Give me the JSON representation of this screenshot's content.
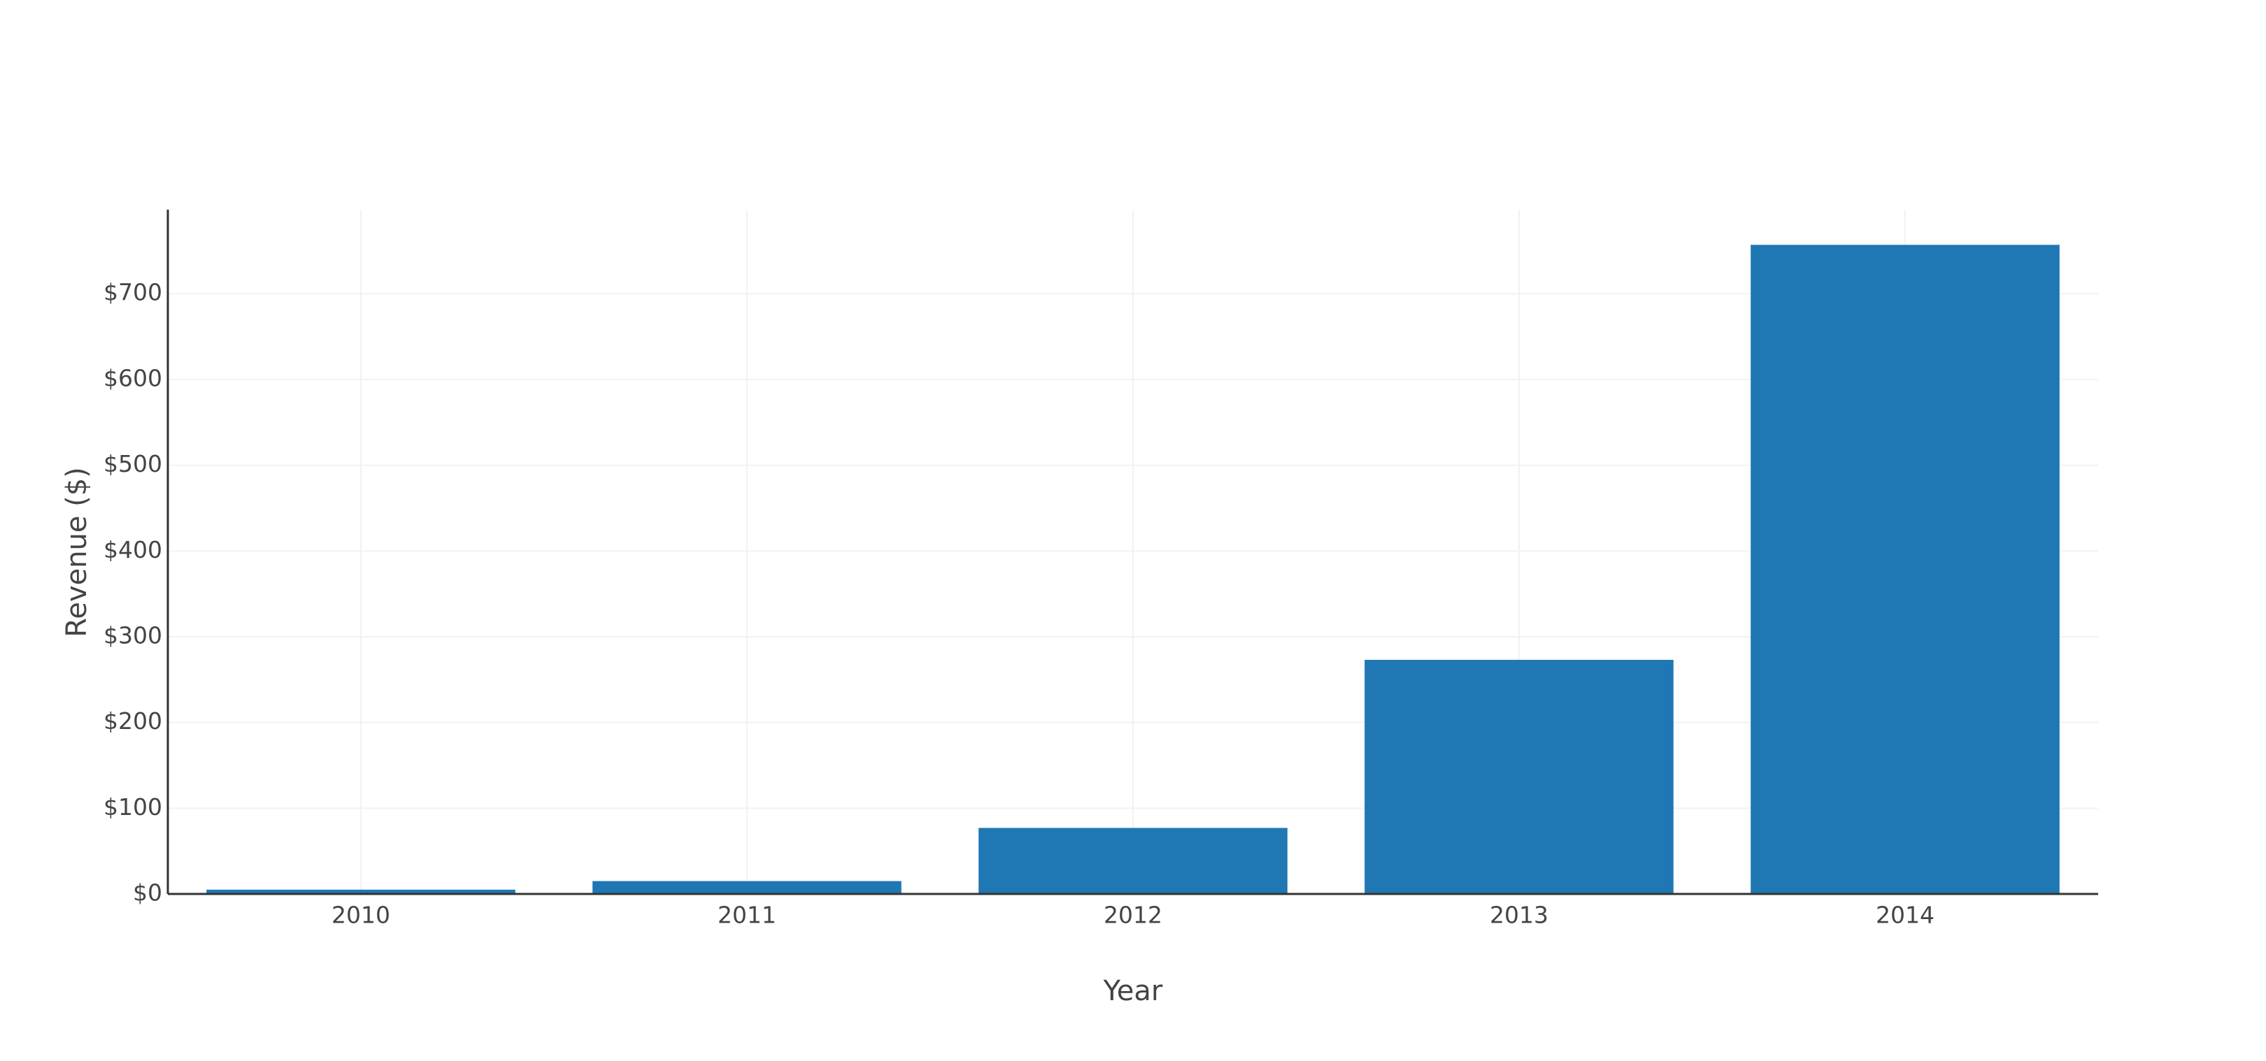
{
  "chart_data": {
    "type": "bar",
    "x_label": "Year",
    "y_label": "Revenue ($)",
    "categories": [
      "2010",
      "2011",
      "2012",
      "2013",
      "2014"
    ],
    "values": [
      5,
      15,
      77,
      273,
      757
    ],
    "color": "#1f77b4",
    "ylim": [
      0,
      798
    ],
    "yticks": [
      {
        "value": 0,
        "label": "$0"
      },
      {
        "value": 100,
        "label": "$100"
      },
      {
        "value": 200,
        "label": "$200"
      },
      {
        "value": 300,
        "label": "$300"
      },
      {
        "value": 400,
        "label": "$400"
      },
      {
        "value": 500,
        "label": "$500"
      },
      {
        "value": 600,
        "label": "$600"
      },
      {
        "value": 700,
        "label": "$700"
      }
    ],
    "grid": true
  }
}
